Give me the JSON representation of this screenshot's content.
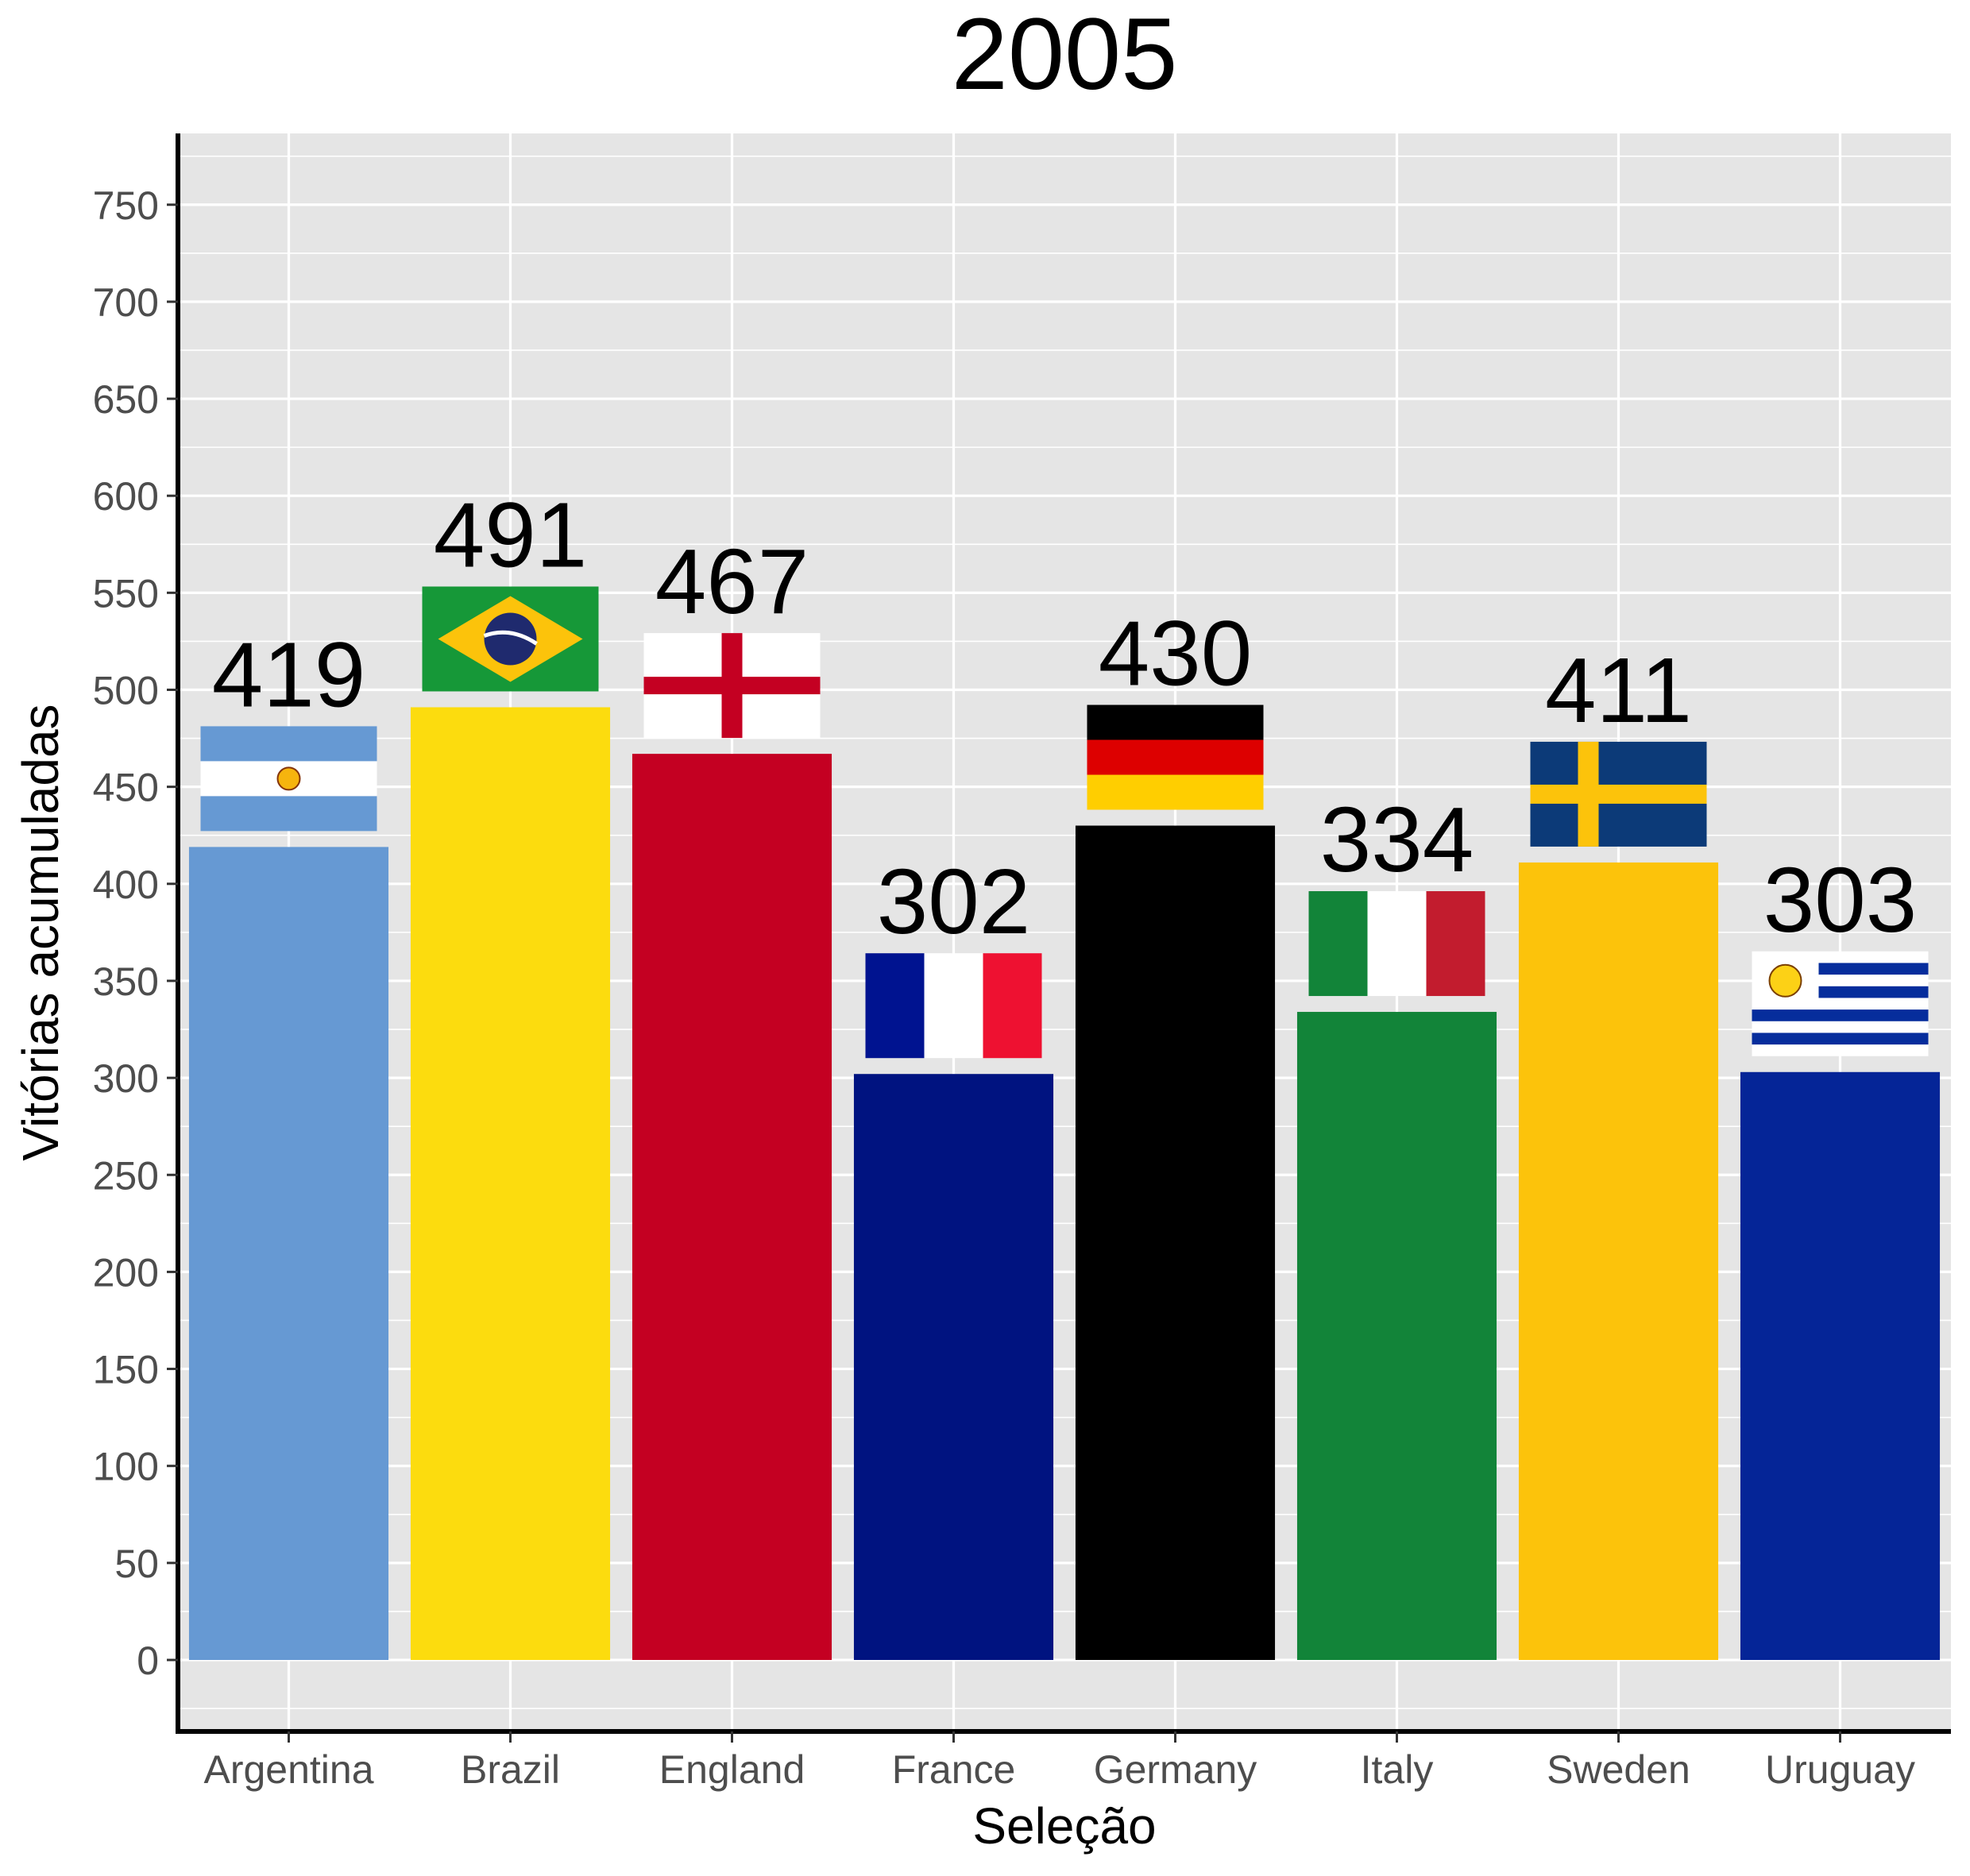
{
  "chart_data": {
    "type": "bar",
    "title": "2005",
    "xlabel": "Seleção",
    "ylabel": "Vitórias acumuladas",
    "categories": [
      "Argentina",
      "Brazil",
      "England",
      "France",
      "Germany",
      "Italy",
      "Sweden",
      "Uruguay"
    ],
    "values": [
      419,
      491,
      467,
      302,
      430,
      334,
      411,
      303
    ],
    "colors": [
      "#6699d3",
      "#fcdc0e",
      "#c40022",
      "#001380",
      "#000000",
      "#128439",
      "#fcc30b",
      "#052597"
    ],
    "flags": [
      "argentina-flag",
      "brazil-flag",
      "england-flag",
      "france-flag",
      "germany-flag",
      "italy-flag",
      "sweden-flag",
      "uruguay-flag"
    ],
    "ylim": [
      -37,
      785
    ],
    "yticks": [
      0,
      50,
      100,
      150,
      200,
      250,
      300,
      350,
      400,
      450,
      500,
      550,
      600,
      650,
      700,
      750
    ],
    "grid": true,
    "background": "#e5e5e5"
  }
}
